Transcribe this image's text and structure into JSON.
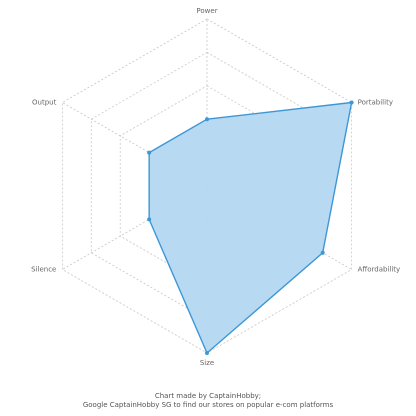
{
  "chart_data": {
    "type": "radar",
    "title": "",
    "categories": [
      "Power",
      "Portability",
      "Affordability",
      "Size",
      "Silence",
      "Output"
    ],
    "series": [
      {
        "values": [
          2,
          5,
          4,
          5,
          2,
          2
        ]
      }
    ],
    "rlim": [
      0,
      5
    ],
    "grid_levels": [
      1,
      2,
      3,
      4,
      5
    ],
    "grid_visible": true,
    "grid_style": "dashed hexagon",
    "series_color": "#3d97d6",
    "fill_color": "#b3d8f1",
    "grid_color": "#c8c8c8",
    "legend": "none"
  },
  "credit": {
    "line1": "Chart made by CaptainHobby;",
    "line2": "Google CaptainHobby SG to find our stores on popular e-com platforms"
  }
}
